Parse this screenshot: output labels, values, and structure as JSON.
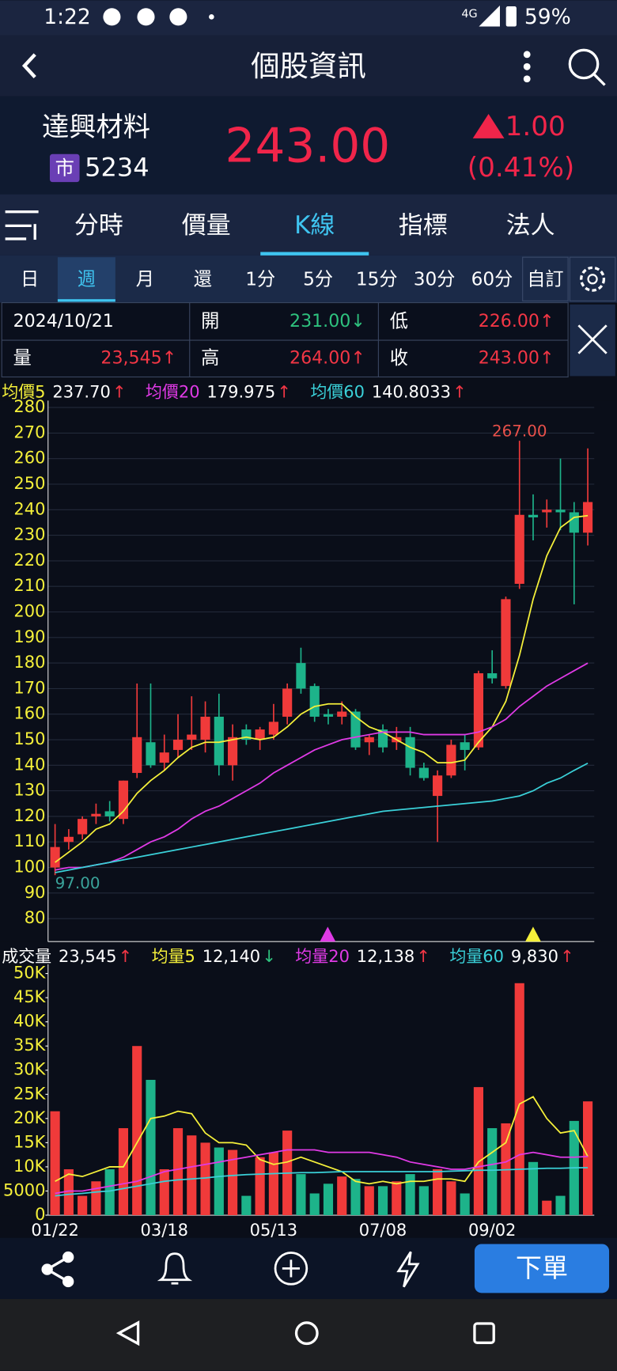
{
  "status_bar": {
    "time": "1:22",
    "network": "4G",
    "battery": "59%"
  },
  "header": {
    "title": "個股資訊"
  },
  "stock": {
    "name": "達興材料",
    "market": "市",
    "code": "5234",
    "price": "243.00",
    "change": "1.00",
    "change_pct": "(0.41%)"
  },
  "tabs": {
    "items": [
      "分時",
      "價量",
      "K線",
      "指標",
      "法人"
    ],
    "active": 2
  },
  "periods": {
    "items": [
      "日",
      "週",
      "月",
      "還",
      "1分",
      "5分",
      "15分",
      "30分",
      "60分",
      "自訂"
    ],
    "active": 1
  },
  "quote": {
    "date": "2024/10/21",
    "cells": [
      {
        "label": "開",
        "value": "231.00↓",
        "color": "#2ec27e"
      },
      {
        "label": "低",
        "value": "226.00↑",
        "color": "#f23645"
      },
      {
        "label": "量",
        "value": "23,545↑",
        "color": "#f23645"
      },
      {
        "label": "高",
        "value": "264.00↑",
        "color": "#f23645"
      },
      {
        "label": "收",
        "value": "243.00↑",
        "color": "#f23645"
      }
    ]
  },
  "chart_data": [
    {
      "type": "candlestick",
      "up_color": "#f03a3a",
      "down_color": "#1db38a",
      "ylim": [
        71,
        281
      ],
      "yticks": [
        80,
        90,
        100,
        110,
        120,
        130,
        140,
        150,
        160,
        170,
        180,
        190,
        200,
        210,
        220,
        230,
        240,
        250,
        260,
        270,
        280
      ],
      "grid": true,
      "max_label": "267.00",
      "min_label": "97.00",
      "open": [
        100,
        110,
        113,
        120,
        122,
        119,
        137,
        149,
        141,
        146,
        150,
        150,
        159,
        140,
        154,
        150,
        152,
        159,
        180,
        171,
        160,
        159,
        161,
        149,
        154,
        149,
        151,
        139,
        128,
        136,
        149,
        147,
        176,
        171,
        211,
        238,
        239,
        240,
        239,
        231
      ],
      "high": [
        117,
        115,
        120,
        125,
        126,
        134,
        172,
        172,
        152,
        160,
        167,
        165,
        168,
        156,
        156,
        155,
        164,
        172,
        186,
        172,
        162,
        165,
        162,
        152,
        156,
        155,
        155,
        141,
        138,
        150,
        152,
        177,
        185,
        206,
        267,
        246,
        244,
        260,
        243,
        264
      ],
      "low": [
        97,
        107,
        111,
        117,
        118,
        117,
        135,
        139,
        138,
        143,
        146,
        145,
        136,
        134,
        148,
        146,
        150,
        156,
        168,
        157,
        156,
        156,
        146,
        144,
        145,
        146,
        136,
        134,
        110,
        135,
        138,
        146,
        172,
        170,
        209,
        228,
        233,
        232,
        203,
        226
      ],
      "close": [
        108,
        112,
        119,
        121,
        120,
        134,
        151,
        140,
        145,
        150,
        152,
        159,
        140,
        151,
        150,
        154,
        157,
        170,
        170,
        159,
        159,
        161,
        147,
        151,
        147,
        151,
        139,
        135,
        136,
        148,
        146,
        176,
        174,
        205,
        238,
        237,
        240,
        239,
        231,
        243
      ],
      "series": [
        {
          "name": "均價5",
          "color": "#f5f03a",
          "legend_value": "237.70",
          "legend_arrow": "↑",
          "arrow_color": "#f23645",
          "values": [
            102,
            106,
            110,
            115,
            117,
            122,
            129,
            134,
            138,
            143,
            147,
            149,
            149,
            150,
            151,
            150,
            151,
            155,
            160,
            163,
            164,
            164,
            159,
            155,
            153,
            150,
            147,
            145,
            141,
            141,
            142,
            149,
            155,
            165,
            183,
            205,
            222,
            233,
            237,
            237.7
          ]
        },
        {
          "name": "均價20",
          "color": "#e03ae6",
          "legend_value": "179.975",
          "legend_arrow": "↑",
          "arrow_color": "#f23645",
          "values": [
            99,
            100,
            100,
            101,
            102,
            104,
            107,
            110,
            112,
            115,
            119,
            122,
            124,
            127,
            130,
            133,
            137,
            140,
            143,
            146,
            148,
            150,
            151,
            152,
            153,
            153,
            153,
            152,
            152,
            152,
            152,
            153,
            155,
            158,
            163,
            167,
            171,
            174,
            177,
            179.975
          ]
        },
        {
          "name": "均價60",
          "color": "#3ad0d8",
          "legend_value": "140.8033",
          "legend_arrow": "↑",
          "arrow_color": "#f23645",
          "values": [
            98,
            99,
            100,
            101,
            102,
            103,
            104,
            105,
            106,
            107,
            108,
            109,
            110,
            111,
            112,
            113,
            114,
            115,
            116,
            117,
            118,
            119,
            120,
            121,
            122,
            122.5,
            123,
            123.5,
            124,
            124.5,
            125,
            125.5,
            126,
            127,
            128,
            130,
            133,
            135,
            138,
            140.8033
          ]
        }
      ]
    },
    {
      "type": "bar",
      "title": "成交量",
      "legend_value": "23,545",
      "legend_arrow": "↑",
      "arrow_color": "#f23645",
      "up_color": "#f03a3a",
      "down_color": "#1db38a",
      "ylim": [
        0,
        51000
      ],
      "yticks": [
        0,
        5000,
        {
          "value": 10000,
          "label": "10K"
        },
        {
          "value": 15000,
          "label": "15K"
        },
        {
          "value": 20000,
          "label": "20K"
        },
        {
          "value": 25000,
          "label": "25K"
        },
        {
          "value": 30000,
          "label": "30K"
        },
        {
          "value": 35000,
          "label": "35K"
        },
        {
          "value": 40000,
          "label": "40K"
        },
        {
          "value": 45000,
          "label": "45K"
        },
        {
          "value": 50000,
          "label": "50K"
        }
      ],
      "categories": [
        "01/22",
        null,
        null,
        null,
        null,
        null,
        null,
        null,
        "03/18",
        null,
        null,
        null,
        null,
        null,
        null,
        null,
        "05/13",
        null,
        null,
        null,
        null,
        null,
        null,
        null,
        "07/08",
        null,
        null,
        null,
        null,
        null,
        null,
        null,
        "09/02",
        null,
        null,
        null,
        null,
        null,
        null,
        null
      ],
      "values": [
        21500,
        9500,
        4000,
        7000,
        9500,
        18000,
        35000,
        28000,
        9500,
        18000,
        16500,
        15000,
        14000,
        13500,
        4000,
        12000,
        13000,
        17500,
        8500,
        4500,
        6500,
        8000,
        7500,
        6000,
        6000,
        7000,
        8500,
        6000,
        9500,
        7000,
        4500,
        26500,
        18000,
        19000,
        48000,
        11000,
        3000,
        4000,
        19500,
        23545
      ],
      "series": [
        {
          "name": "均量5",
          "color": "#f5f03a",
          "legend_value": "12,140",
          "legend_arrow": "↓",
          "arrow_color": "#2ec27e",
          "values": [
            7000,
            8500,
            8000,
            9000,
            10000,
            10000,
            15000,
            20000,
            20500,
            21500,
            21000,
            17000,
            15000,
            15000,
            14500,
            11500,
            10500,
            11000,
            12000,
            11000,
            10000,
            9000,
            7000,
            6500,
            7000,
            6500,
            7000,
            7000,
            7500,
            7500,
            7000,
            11000,
            13000,
            15000,
            23000,
            24500,
            20000,
            17000,
            17500,
            12140
          ]
        },
        {
          "name": "均量20",
          "color": "#e03ae6",
          "legend_value": "12,138",
          "legend_arrow": "↑",
          "arrow_color": "#f23645",
          "values": [
            4500,
            5000,
            5000,
            5500,
            6000,
            6500,
            7000,
            8000,
            9000,
            9500,
            10000,
            10500,
            11000,
            11500,
            12000,
            12500,
            13000,
            13500,
            13500,
            13500,
            13000,
            13000,
            13000,
            13000,
            12500,
            12000,
            11000,
            10500,
            10000,
            9500,
            9500,
            10000,
            10500,
            11000,
            12500,
            13000,
            12500,
            12000,
            12000,
            12138
          ]
        },
        {
          "name": "均量60",
          "color": "#3ad0d8",
          "legend_value": "9,830",
          "legend_arrow": "↑",
          "arrow_color": "#f23645",
          "values": [
            4000,
            4300,
            4500,
            4800,
            5000,
            5500,
            6000,
            6500,
            7000,
            7300,
            7500,
            7700,
            8000,
            8200,
            8400,
            8500,
            8600,
            8700,
            8800,
            8800,
            8900,
            9000,
            9000,
            9000,
            9000,
            9000,
            9000,
            9000,
            9000,
            9100,
            9200,
            9300,
            9300,
            9400,
            9500,
            9600,
            9700,
            9700,
            9800,
            9830
          ]
        }
      ]
    }
  ],
  "toolbar": {
    "order_button": "下單"
  }
}
